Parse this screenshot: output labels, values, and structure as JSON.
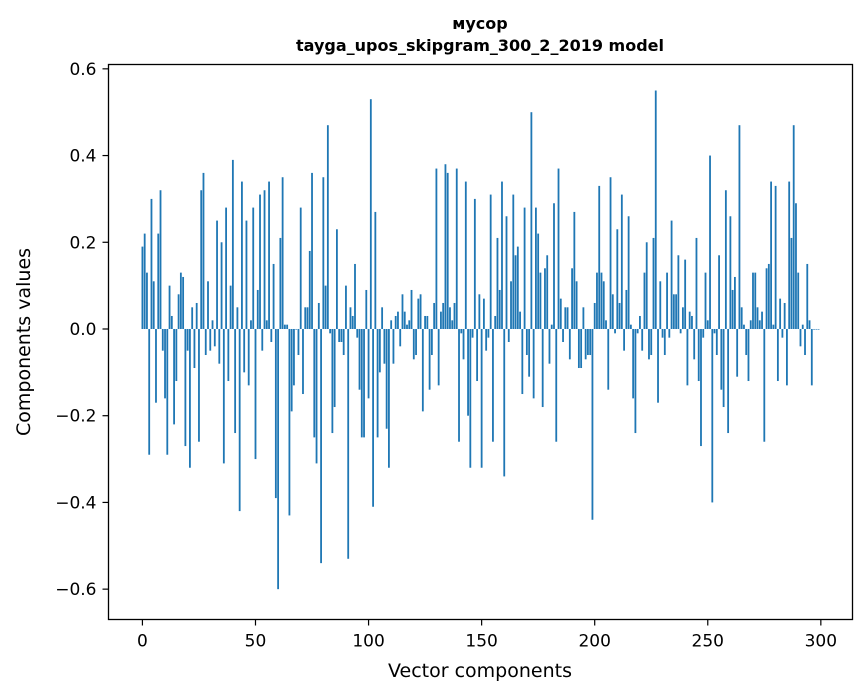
{
  "chart_data": {
    "type": "bar",
    "title": "мусор",
    "subtitle": "tayga_upos_skipgram_300_2_2019 model",
    "xlabel": "Vector components",
    "ylabel": "Components values",
    "xlim": [
      -15,
      314
    ],
    "ylim": [
      -0.67,
      0.61
    ],
    "xticks": [
      0,
      50,
      100,
      150,
      200,
      250,
      300
    ],
    "xtick_labels": [
      "0",
      "50",
      "100",
      "150",
      "200",
      "250",
      "300"
    ],
    "yticks": [
      -0.6,
      -0.4,
      -0.2,
      0.0,
      0.2,
      0.4,
      0.6
    ],
    "ytick_labels": [
      "−0.6",
      "−0.4",
      "−0.2",
      "0.0",
      "0.2",
      "0.4",
      "0.6"
    ],
    "bar_color": "#1f77b4",
    "grid": false,
    "values": [
      0.19,
      0.22,
      0.13,
      -0.29,
      0.3,
      0.11,
      -0.17,
      0.22,
      0.32,
      -0.05,
      -0.16,
      -0.29,
      0.1,
      0.03,
      -0.22,
      -0.12,
      0.08,
      0.13,
      0.12,
      -0.27,
      -0.05,
      -0.32,
      0.05,
      -0.09,
      0.06,
      -0.26,
      0.32,
      0.36,
      -0.06,
      0.11,
      -0.05,
      0.02,
      -0.04,
      0.25,
      -0.08,
      0.2,
      -0.31,
      0.28,
      -0.12,
      0.1,
      0.39,
      -0.24,
      0.05,
      -0.42,
      0.34,
      -0.1,
      0.25,
      -0.13,
      0.02,
      0.28,
      -0.3,
      0.09,
      0.31,
      -0.05,
      0.32,
      0.02,
      0.34,
      -0.03,
      0.15,
      -0.39,
      -0.6,
      0.21,
      0.35,
      0.01,
      0.01,
      -0.43,
      -0.19,
      -0.13,
      0.0,
      -0.06,
      0.28,
      -0.15,
      0.05,
      0.05,
      0.18,
      0.36,
      -0.25,
      -0.31,
      0.06,
      -0.54,
      0.35,
      0.1,
      0.47,
      -0.01,
      -0.24,
      -0.18,
      0.23,
      -0.03,
      -0.03,
      -0.06,
      0.1,
      -0.53,
      0.05,
      0.03,
      0.15,
      -0.02,
      -0.14,
      -0.25,
      -0.25,
      0.09,
      -0.16,
      0.53,
      -0.41,
      0.27,
      -0.25,
      -0.1,
      0.05,
      -0.08,
      -0.23,
      -0.32,
      0.02,
      -0.08,
      0.03,
      0.04,
      -0.04,
      0.08,
      0.04,
      0.01,
      0.02,
      0.09,
      -0.07,
      -0.06,
      0.07,
      0.08,
      -0.19,
      0.03,
      0.03,
      -0.14,
      -0.06,
      0.06,
      0.37,
      -0.13,
      0.04,
      0.06,
      0.38,
      0.36,
      0.05,
      0.02,
      0.06,
      0.37,
      -0.26,
      -0.01,
      -0.07,
      0.34,
      -0.2,
      -0.32,
      -0.02,
      0.3,
      -0.12,
      0.08,
      -0.32,
      0.07,
      -0.05,
      -0.02,
      0.31,
      -0.26,
      0.03,
      0.21,
      0.09,
      0.34,
      -0.34,
      0.26,
      -0.03,
      0.11,
      0.31,
      0.17,
      0.19,
      0.04,
      -0.15,
      0.28,
      -0.06,
      -0.11,
      0.5,
      -0.16,
      0.28,
      0.22,
      0.13,
      -0.18,
      0.14,
      0.17,
      -0.08,
      0.01,
      0.29,
      -0.26,
      0.37,
      0.07,
      -0.03,
      0.05,
      0.05,
      -0.07,
      0.14,
      0.27,
      0.11,
      -0.09,
      -0.09,
      0.05,
      -0.07,
      -0.06,
      -0.06,
      -0.44,
      0.06,
      0.13,
      0.33,
      0.13,
      0.11,
      0.02,
      -0.14,
      0.35,
      0.08,
      -0.01,
      0.23,
      0.06,
      0.31,
      -0.05,
      0.09,
      0.26,
      0.01,
      -0.16,
      -0.24,
      -0.01,
      0.03,
      -0.05,
      0.13,
      0.2,
      -0.07,
      -0.06,
      0.21,
      0.55,
      -0.17,
      0.11,
      -0.02,
      -0.06,
      0.13,
      -0.02,
      0.25,
      0.08,
      0.08,
      0.17,
      -0.01,
      0.05,
      0.16,
      -0.13,
      0.04,
      0.03,
      -0.07,
      0.21,
      -0.12,
      -0.27,
      -0.02,
      0.13,
      0.02,
      0.4,
      -0.4,
      -0.01,
      -0.06,
      0.17,
      -0.14,
      -0.18,
      0.32,
      -0.24,
      0.26,
      0.09,
      0.12,
      -0.11,
      0.47,
      0.05,
      0.01,
      -0.06,
      -0.12,
      0.02,
      0.13,
      0.13,
      0.05,
      0.02,
      0.04,
      -0.26,
      0.14,
      0.15,
      0.34,
      0.01,
      0.33,
      -0.12,
      0.07,
      -0.02,
      0.06,
      -0.13,
      0.34,
      0.21,
      0.47,
      0.29,
      0.13,
      -0.04,
      0.01,
      -0.06,
      0.15,
      0.02,
      -0.13,
      0.0,
      0.0,
      0.0
    ]
  }
}
